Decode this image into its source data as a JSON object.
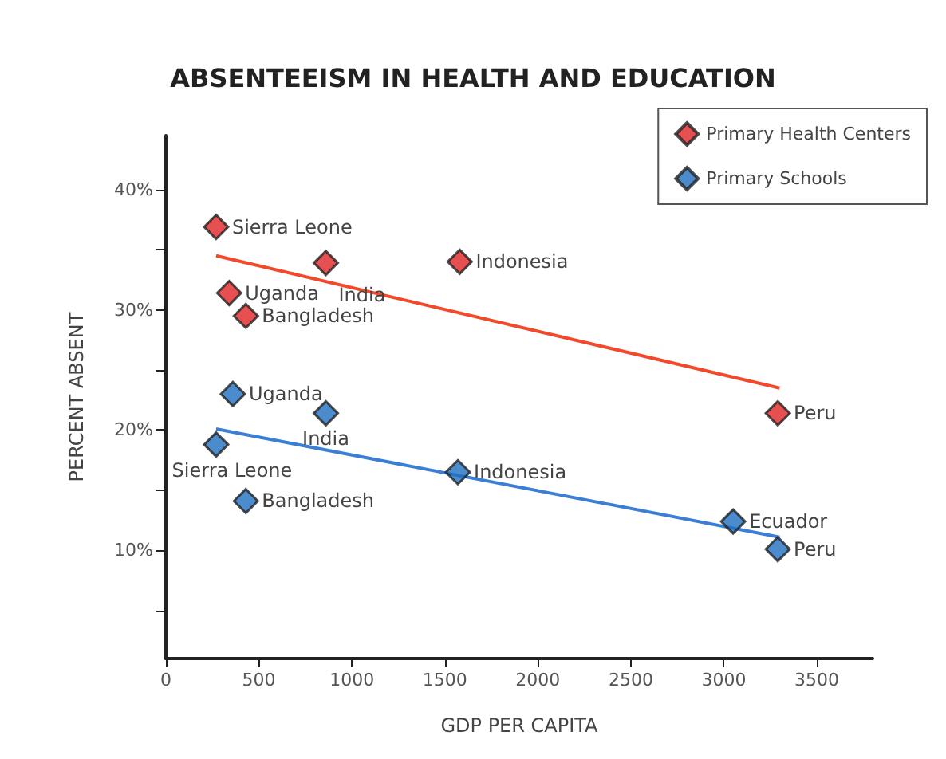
{
  "chart_data": {
    "type": "scatter",
    "title": "ABSENTEEISM IN HEALTH AND EDUCATION",
    "xlabel": "GDP PER CAPITA",
    "ylabel": "PERCENT ABSENT",
    "xlim": [
      0,
      3800
    ],
    "xticks": [
      0,
      500,
      1000,
      1500,
      2000,
      2500,
      3000,
      3500
    ],
    "ylim": [
      1,
      44.5
    ],
    "yticks": [
      {
        "value": 5,
        "label": null
      },
      {
        "value": 10,
        "label": "10%"
      },
      {
        "value": 15,
        "label": null
      },
      {
        "value": 20,
        "label": "20%"
      },
      {
        "value": 25,
        "label": null
      },
      {
        "value": 30,
        "label": "30%"
      },
      {
        "value": 35,
        "label": null
      },
      {
        "value": 40,
        "label": "40%"
      }
    ],
    "grid": false,
    "legend": "top right",
    "marker": "diamond",
    "series": [
      {
        "name": "Primary Health Centers",
        "color": "#e02424",
        "x": [
          270,
          340,
          430,
          860,
          1580,
          3290
        ],
        "values": [
          36.9,
          31.4,
          29.5,
          33.9,
          34,
          21.4
        ]
      },
      {
        "name": "Primary Schools",
        "color": "#1f6fbf",
        "x": [
          270,
          360,
          430,
          860,
          1570,
          3050,
          3290
        ],
        "values": [
          18.8,
          23,
          14.1,
          21.4,
          16.5,
          12.4,
          10.1
        ]
      },
      {
        "type": "line",
        "color": "#f2492a",
        "line_style": "solid",
        "marker": "none",
        "x": [
          270,
          3300
        ],
        "values": [
          34.5,
          23.5
        ]
      },
      {
        "type": "line",
        "color": "#3a7fd5",
        "line_style": "solid",
        "marker": "none",
        "x": [
          270,
          3300
        ],
        "values": [
          20.1,
          11.1
        ]
      }
    ],
    "annotations": [
      {
        "text": "Sierra Leone",
        "x": 270,
        "y": 36.9
      },
      {
        "text": "Uganda",
        "x": 340,
        "y": 31.4
      },
      {
        "text": "Bangladesh",
        "x": 430,
        "y": 29.5
      },
      {
        "text": "India",
        "x": 860,
        "y": 33.9
      },
      {
        "text": "Indonesia",
        "x": 1580,
        "y": 34
      },
      {
        "text": "Peru",
        "x": 3290,
        "y": 21.4
      },
      {
        "text": "Sierra Leone",
        "x": 270,
        "y": 18.8
      },
      {
        "text": "Uganda",
        "x": 360,
        "y": 23
      },
      {
        "text": "Bangladesh",
        "x": 430,
        "y": 14.1
      },
      {
        "text": "India",
        "x": 860,
        "y": 21.4
      },
      {
        "text": "Indonesia",
        "x": 1570,
        "y": 16.5
      },
      {
        "text": "Ecuador",
        "x": 3050,
        "y": 12.4
      },
      {
        "text": "Peru",
        "x": 3290,
        "y": 10.1
      }
    ]
  }
}
